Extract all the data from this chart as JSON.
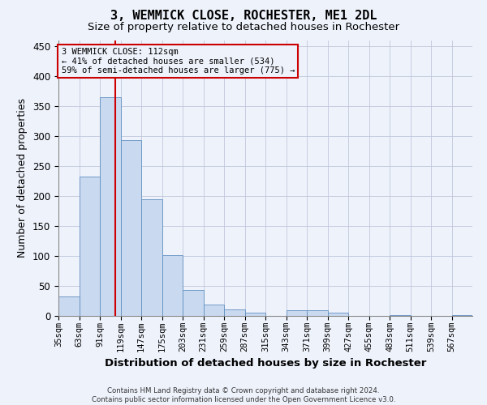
{
  "title": "3, WEMMICK CLOSE, ROCHESTER, ME1 2DL",
  "subtitle": "Size of property relative to detached houses in Rochester",
  "xlabel": "Distribution of detached houses by size in Rochester",
  "ylabel": "Number of detached properties",
  "footer_line1": "Contains HM Land Registry data © Crown copyright and database right 2024.",
  "footer_line2": "Contains public sector information licensed under the Open Government Licence v3.0.",
  "bar_edges": [
    35,
    63,
    91,
    119,
    147,
    175,
    203,
    231,
    259,
    287,
    315,
    343,
    371,
    399,
    427,
    455,
    483,
    511,
    539,
    567,
    595
  ],
  "bar_values": [
    33,
    233,
    365,
    293,
    195,
    102,
    43,
    19,
    11,
    5,
    0,
    9,
    9,
    5,
    0,
    0,
    2,
    0,
    0,
    2
  ],
  "bar_color": "#c9d9f0",
  "bar_edgecolor": "#6090c0",
  "property_size": 112,
  "annotation_line1": "3 WEMMICK CLOSE: 112sqm",
  "annotation_line2": "← 41% of detached houses are smaller (534)",
  "annotation_line3": "59% of semi-detached houses are larger (775) →",
  "vline_color": "#cc0000",
  "ylim": [
    0,
    460
  ],
  "xlim": [
    35,
    595
  ],
  "annotation_box_edgecolor": "#cc0000",
  "background_color": "#eef2fb",
  "grid_color": "#c0c8dc",
  "tick_fontsize": 7.5,
  "ylabel_fontsize": 9,
  "xlabel_fontsize": 9.5,
  "title_fontsize": 11,
  "subtitle_fontsize": 9.5
}
